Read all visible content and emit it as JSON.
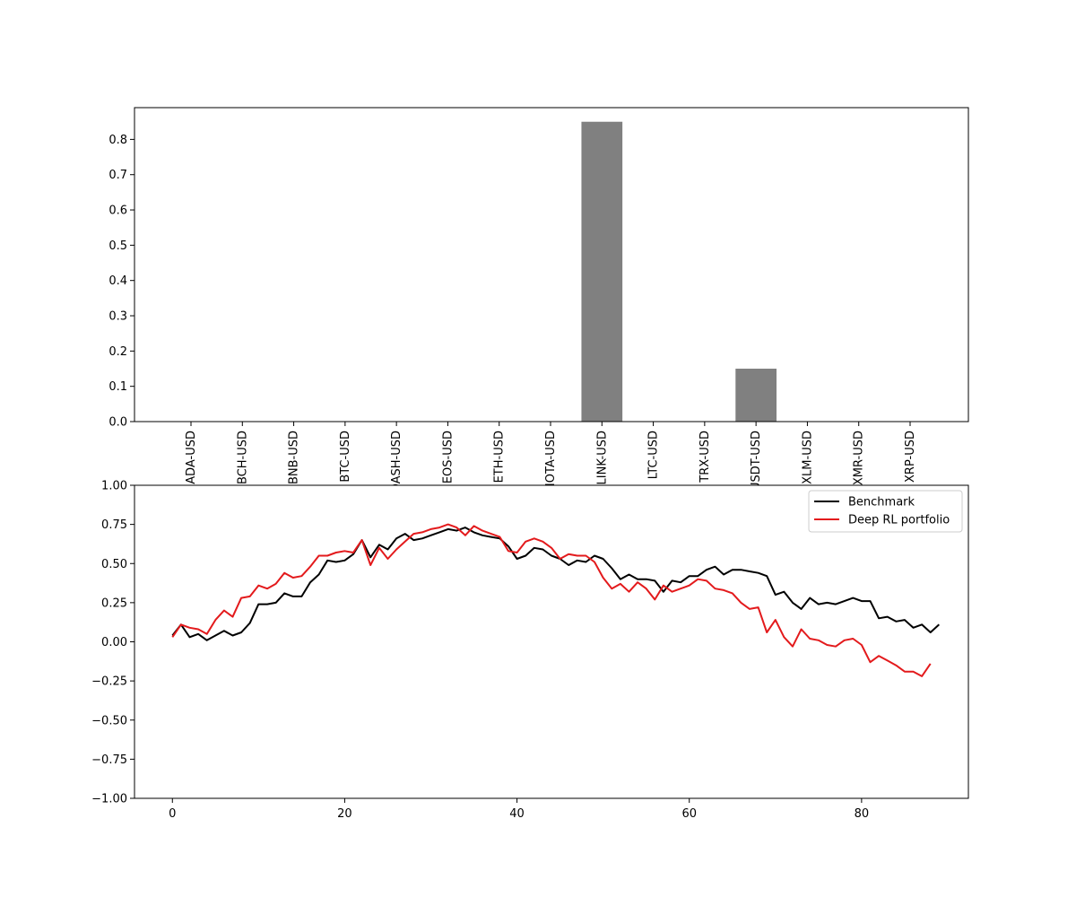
{
  "chart_data": [
    {
      "type": "bar",
      "categories": [
        "ADA-USD",
        "BCH-USD",
        "BNB-USD",
        "BTC-USD",
        "DASH-USD",
        "EOS-USD",
        "ETH-USD",
        "IOTA-USD",
        "LINK-USD",
        "LTC-USD",
        "TRX-USD",
        "USDT-USD",
        "XLM-USD",
        "XMR-USD",
        "XRP-USD"
      ],
      "values": [
        0,
        0,
        0,
        0,
        0,
        0,
        0,
        0,
        0.85,
        0,
        0,
        0.15,
        0,
        0,
        0
      ],
      "ylim": [
        0,
        0.89
      ],
      "yticks": [
        "0.0",
        "0.1",
        "0.2",
        "0.3",
        "0.4",
        "0.5",
        "0.6",
        "0.7",
        "0.8"
      ],
      "bar_color": "#808080"
    },
    {
      "type": "line",
      "xlim": [
        -4.4,
        92.4
      ],
      "ylim": [
        -1.0,
        1.0
      ],
      "xticks": [
        "0",
        "20",
        "40",
        "60",
        "80"
      ],
      "yticks": [
        "−1.00",
        "−0.75",
        "−0.50",
        "−0.25",
        "0.00",
        "0.25",
        "0.50",
        "0.75",
        "1.00"
      ],
      "legend_position": "top-right",
      "series": [
        {
          "name": "Benchmark",
          "color": "#000000",
          "values": [
            0.04,
            0.11,
            0.03,
            0.05,
            0.01,
            0.04,
            0.07,
            0.04,
            0.06,
            0.12,
            0.24,
            0.24,
            0.25,
            0.31,
            0.29,
            0.29,
            0.38,
            0.43,
            0.52,
            0.51,
            0.52,
            0.56,
            0.65,
            0.54,
            0.62,
            0.59,
            0.66,
            0.69,
            0.65,
            0.66,
            0.68,
            0.7,
            0.72,
            0.71,
            0.73,
            0.7,
            0.68,
            0.67,
            0.66,
            0.61,
            0.53,
            0.55,
            0.6,
            0.59,
            0.55,
            0.53,
            0.49,
            0.52,
            0.51,
            0.55,
            0.53,
            0.47,
            0.4,
            0.43,
            0.4,
            0.4,
            0.39,
            0.32,
            0.39,
            0.38,
            0.42,
            0.42,
            0.46,
            0.48,
            0.43,
            0.46,
            0.46,
            0.45,
            0.44,
            0.42,
            0.3,
            0.32,
            0.25,
            0.21,
            0.28,
            0.24,
            0.25,
            0.24,
            0.26,
            0.28,
            0.26,
            0.26,
            0.15,
            0.16,
            0.13,
            0.14,
            0.09,
            0.11,
            0.06,
            0.11
          ]
        },
        {
          "name": "Deep RL portfolio",
          "color": "#e31a1c",
          "values": [
            0.03,
            0.11,
            0.09,
            0.08,
            0.05,
            0.14,
            0.2,
            0.16,
            0.28,
            0.29,
            0.36,
            0.34,
            0.37,
            0.44,
            0.41,
            0.42,
            0.48,
            0.55,
            0.55,
            0.57,
            0.58,
            0.57,
            0.65,
            0.49,
            0.6,
            0.53,
            0.59,
            0.64,
            0.69,
            0.7,
            0.72,
            0.73,
            0.75,
            0.73,
            0.68,
            0.74,
            0.71,
            0.69,
            0.67,
            0.58,
            0.57,
            0.64,
            0.66,
            0.64,
            0.6,
            0.53,
            0.56,
            0.55,
            0.55,
            0.51,
            0.41,
            0.34,
            0.37,
            0.32,
            0.38,
            0.34,
            0.27,
            0.36,
            0.32,
            0.34,
            0.36,
            0.4,
            0.39,
            0.34,
            0.33,
            0.31,
            0.25,
            0.21,
            0.22,
            0.06,
            0.14,
            0.03,
            -0.03,
            0.08,
            0.02,
            0.01,
            -0.02,
            -0.03,
            0.01,
            0.02,
            -0.02,
            -0.13,
            -0.09,
            -0.12,
            -0.15,
            -0.19,
            -0.19,
            -0.22,
            -0.14
          ]
        }
      ]
    }
  ]
}
